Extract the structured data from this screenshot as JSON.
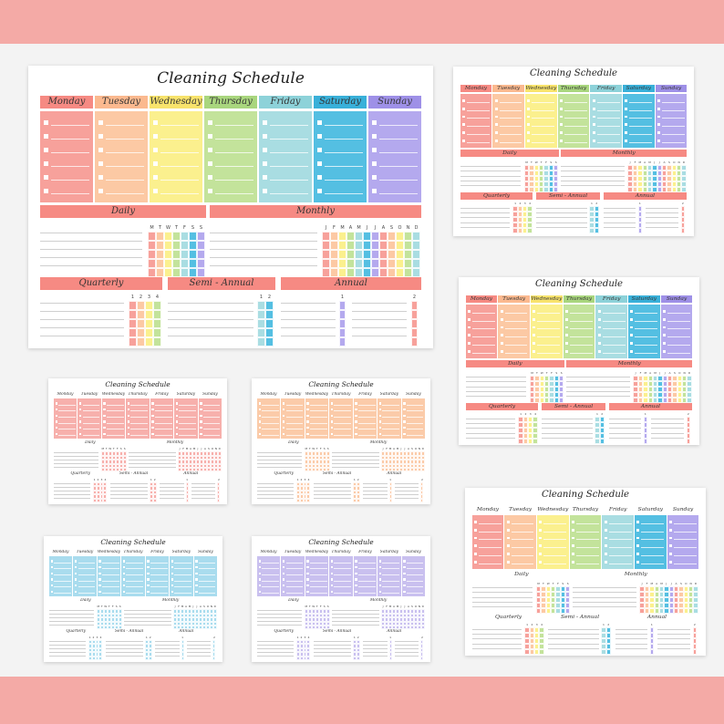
{
  "title": "Cleaning Schedule",
  "days": [
    "Monday",
    "Tuesday",
    "Wednesday",
    "Thursday",
    "Friday",
    "Saturday",
    "Sunday"
  ],
  "sections": {
    "daily": "Daily",
    "monthly": "Monthly",
    "quarterly": "Quarterly",
    "semi_annual": "Semi - Annual",
    "annual": "Annual"
  },
  "daily_letters": [
    "M",
    "T",
    "W",
    "T",
    "F",
    "S",
    "S"
  ],
  "monthly_letters": [
    "J",
    "F",
    "M",
    "A",
    "M",
    "J",
    "J",
    "A",
    "S",
    "O",
    "N",
    "D"
  ],
  "quarterly_numbers": [
    "1",
    "2",
    "3",
    "4"
  ],
  "semi_annual_numbers": [
    "1",
    "2"
  ],
  "annual_numbers": [
    "1",
    "2"
  ],
  "sheet_variants": [
    "rainbow",
    "rainbow",
    "rainbow",
    "pink",
    "peach",
    "blue",
    "purple",
    "rainbow"
  ],
  "colors": {
    "band": "#f4aaa6",
    "rainbow": [
      "#f7a19b",
      "#fcc9a4",
      "#fbf08e",
      "#c3e39b",
      "#a9dde2",
      "#54bfe2",
      "#b4a9ee"
    ],
    "rainbow_headers": [
      "#f68a83",
      "#fbb98f",
      "#f8e36c",
      "#a9d67e",
      "#8dd2d9",
      "#39b0d9",
      "#9e90e7"
    ],
    "pink": "#f7b0ac",
    "peach": "#fbcba9",
    "blue": "#a9dcee",
    "purple": "#c9c0ef",
    "section_header": "#f68a83"
  }
}
